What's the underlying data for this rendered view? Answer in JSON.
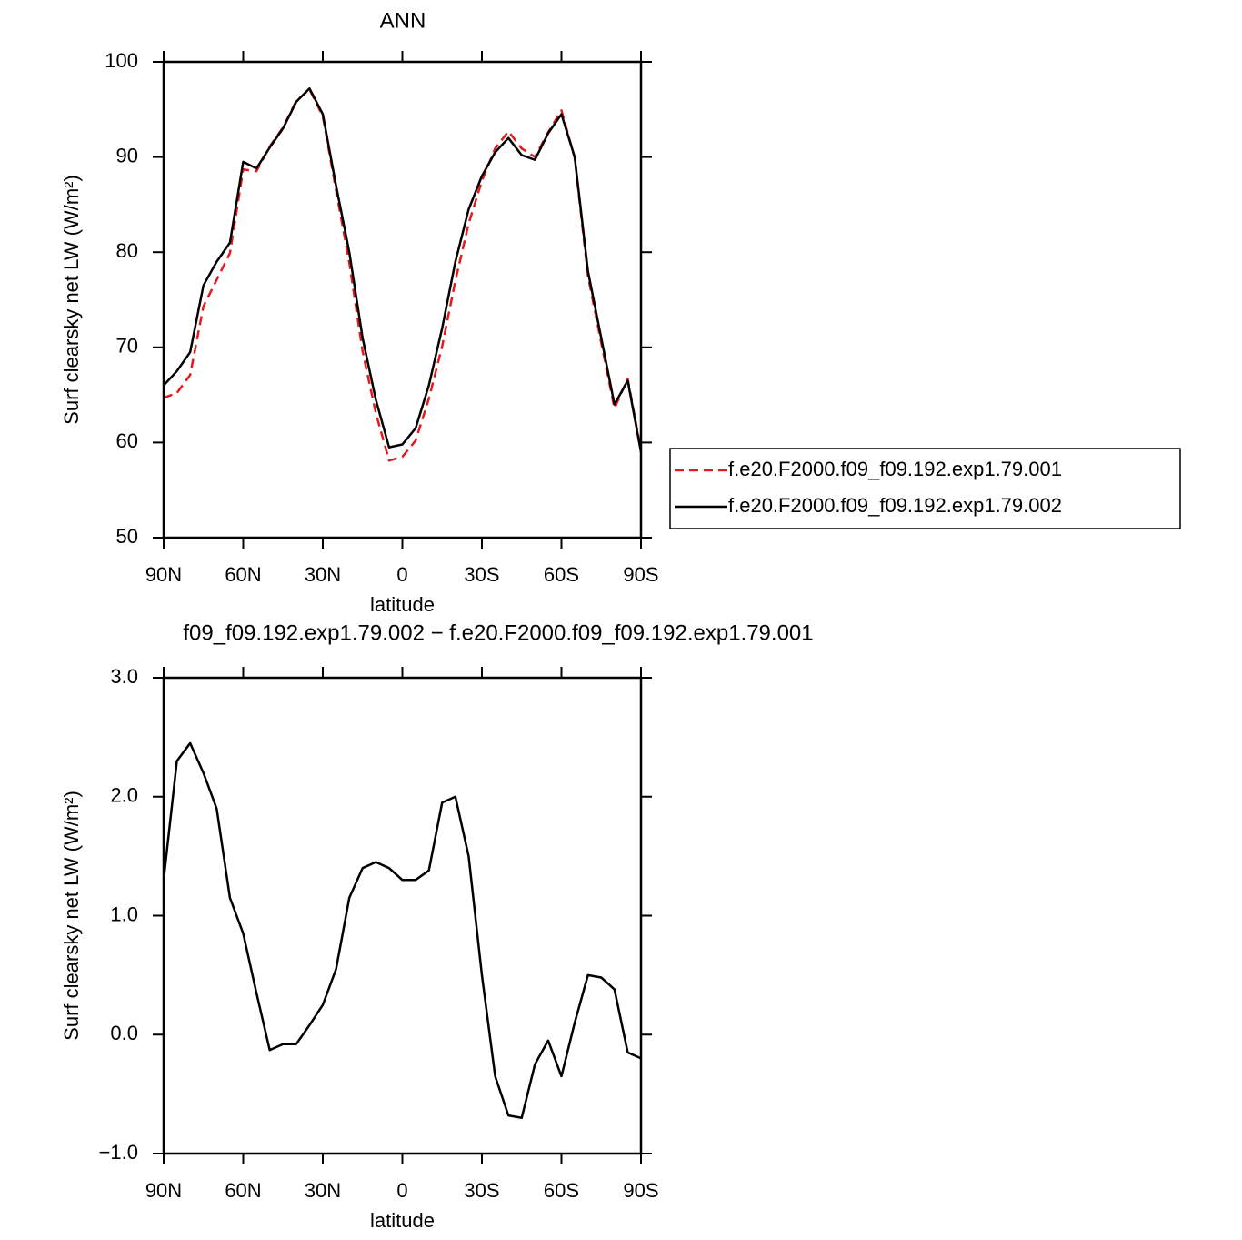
{
  "chart_data": [
    {
      "type": "line",
      "title": "ANN",
      "xlabel": "latitude",
      "ylabel": "Surf clearsky net LW (W/m²)",
      "x": [
        90,
        85,
        80,
        75,
        70,
        65,
        60,
        55,
        50,
        45,
        40,
        35,
        30,
        25,
        20,
        15,
        10,
        5,
        0,
        -5,
        -10,
        -15,
        -20,
        -25,
        -30,
        -35,
        -40,
        -45,
        -50,
        -55,
        -60,
        -65,
        -70,
        -75,
        -80,
        -85,
        -90
      ],
      "series": [
        {
          "name": "f.e20.F2000.f09_f09.192.exp1.79.001",
          "color": "#e41a1c",
          "style": "dashed",
          "values": [
            64.7,
            65.2,
            67.1,
            74.3,
            77.1,
            79.9,
            88.7,
            88.5,
            91.1,
            93.1,
            95.9,
            97.1,
            94.3,
            86.5,
            78.9,
            69.6,
            63.1,
            58.1,
            58.5,
            60.2,
            64.6,
            70.1,
            77.0,
            83.0,
            87.5,
            90.9,
            92.7,
            90.9,
            90.0,
            92.6,
            94.9,
            89.9,
            77.5,
            70.5,
            63.6,
            66.7,
            59.2
          ]
        },
        {
          "name": "f.e20.F2000.f09_f09.192.exp1.79.002",
          "color": "#000000",
          "style": "solid",
          "values": [
            66,
            67.5,
            69.5,
            76.5,
            79,
            81,
            89.5,
            88.8,
            91,
            93,
            95.8,
            97.2,
            94.5,
            87,
            80,
            71,
            64.5,
            59.5,
            59.8,
            61.5,
            66,
            72,
            79,
            84.5,
            88,
            90.5,
            92,
            90.2,
            89.7,
            92.5,
            94.5,
            90,
            78,
            71,
            64,
            66.5,
            59
          ]
        }
      ],
      "xlim": [
        90,
        -90
      ],
      "xticks": [
        {
          "value": 90,
          "label": "90N"
        },
        {
          "value": 60,
          "label": "60N"
        },
        {
          "value": 30,
          "label": "30N"
        },
        0,
        {
          "value": -30,
          "label": "30S"
        },
        {
          "value": -60,
          "label": "60S"
        },
        {
          "value": -90,
          "label": "90S"
        }
      ],
      "ylim": [
        50,
        100
      ],
      "yticks": [
        50,
        60,
        70,
        80,
        90,
        100
      ],
      "legend": "right"
    },
    {
      "type": "line",
      "title": "f09_f09.192.exp1.79.002 − f.e20.F2000.f09_f09.192.exp1.79.001",
      "xlabel": "latitude",
      "ylabel": "Surf clearsky net LW (W/m²)",
      "x": [
        90,
        85,
        80,
        75,
        70,
        65,
        60,
        55,
        50,
        45,
        40,
        35,
        30,
        25,
        20,
        15,
        10,
        5,
        0,
        -5,
        -10,
        -15,
        -20,
        -25,
        -30,
        -35,
        -40,
        -45,
        -50,
        -55,
        -60,
        -65,
        -70,
        -75,
        -80,
        -85,
        -90
      ],
      "values": [
        1.3,
        2.3,
        2.45,
        2.2,
        1.9,
        1.15,
        0.85,
        0.35,
        -0.13,
        -0.08,
        -0.08,
        0.08,
        0.25,
        0.55,
        1.15,
        1.4,
        1.45,
        1.4,
        1.3,
        1.3,
        1.38,
        1.95,
        2.0,
        1.5,
        0.5,
        -0.35,
        -0.68,
        -0.7,
        -0.25,
        -0.05,
        -0.35,
        0.1,
        0.5,
        0.48,
        0.38,
        -0.15,
        -0.2
      ],
      "color": "#000000",
      "xlim": [
        90,
        -90
      ],
      "xticks": [
        {
          "value": 90,
          "label": "90N"
        },
        {
          "value": 60,
          "label": "60N"
        },
        {
          "value": 30,
          "label": "30N"
        },
        0,
        {
          "value": -30,
          "label": "30S"
        },
        {
          "value": -60,
          "label": "60S"
        },
        {
          "value": -90,
          "label": "90S"
        }
      ],
      "ylim": [
        -1,
        3
      ],
      "yticks": [
        {
          "value": -1,
          "label": "−1.0"
        },
        {
          "value": 0,
          "label": "0.0"
        },
        {
          "value": 1,
          "label": "1.0"
        },
        {
          "value": 2,
          "label": "2.0"
        },
        {
          "value": 3,
          "label": "3.0"
        }
      ]
    }
  ]
}
